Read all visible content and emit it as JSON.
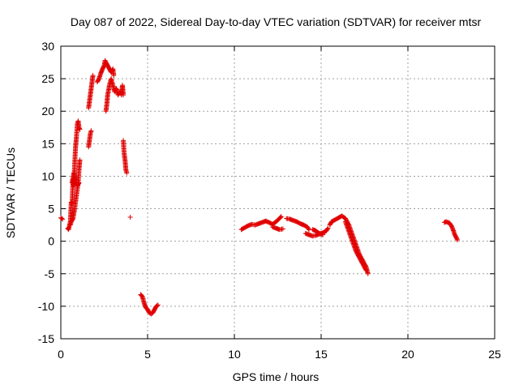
{
  "chart_data": {
    "type": "scatter",
    "title": "Day 087 of 2022, Sidereal Day-to-day VTEC variation (SDTVAR) for receiver mtsr",
    "xlabel": "GPS time / hours",
    "ylabel": "SDTVAR / TECUs",
    "xlim": [
      0,
      25
    ],
    "ylim": [
      -15,
      30
    ],
    "x_ticks": [
      0,
      5,
      10,
      15,
      20,
      25
    ],
    "y_ticks": [
      -15,
      -10,
      -5,
      0,
      5,
      10,
      15,
      20,
      25,
      30
    ],
    "x_tick_labels": [
      "0",
      "5",
      "10",
      "15",
      "20",
      "25"
    ],
    "y_tick_labels": [
      "-15",
      "-10",
      "-5",
      "0",
      "5",
      "10",
      "15",
      "20",
      "25",
      "30"
    ],
    "grid": true,
    "marker": "+",
    "color": "#e00000",
    "series": [
      {
        "name": "SDTVAR",
        "segments": [
          [
            [
              0.0,
              3.6
            ],
            [
              0.05,
              3.5
            ],
            [
              0.1,
              3.4
            ]
          ],
          [
            [
              0.4,
              2.0
            ],
            [
              0.45,
              1.8
            ],
            [
              0.5,
              2.5
            ],
            [
              0.55,
              3.0
            ],
            [
              0.6,
              6.0
            ],
            [
              0.65,
              5.8
            ],
            [
              0.7,
              9.5
            ],
            [
              0.75,
              8.5
            ],
            [
              0.8,
              12.0
            ],
            [
              0.85,
              14.5
            ],
            [
              0.9,
              16.0
            ],
            [
              0.95,
              18.0
            ],
            [
              1.0,
              18.5
            ],
            [
              1.05,
              17.5
            ],
            [
              1.1,
              17.2
            ]
          ],
          [
            [
              0.55,
              2.5
            ],
            [
              0.6,
              3.0
            ],
            [
              0.7,
              3.5
            ],
            [
              0.8,
              5.0
            ],
            [
              0.9,
              7.0
            ],
            [
              1.0,
              9.0
            ],
            [
              1.05,
              11.0
            ],
            [
              1.1,
              12.5
            ]
          ],
          [
            [
              0.65,
              9.0
            ],
            [
              0.75,
              10.5
            ],
            [
              0.85,
              9.5
            ],
            [
              0.95,
              8.5
            ],
            [
              1.05,
              9.0
            ]
          ],
          [
            [
              1.6,
              14.5
            ],
            [
              1.65,
              15.5
            ],
            [
              1.7,
              16.5
            ],
            [
              1.75,
              17.0
            ]
          ],
          [
            [
              1.6,
              20.5
            ],
            [
              1.65,
              21.5
            ],
            [
              1.7,
              22.5
            ],
            [
              1.75,
              23.5
            ],
            [
              1.8,
              24.5
            ],
            [
              1.85,
              25.5
            ]
          ],
          [
            [
              2.1,
              24.5
            ],
            [
              2.2,
              25.0
            ],
            [
              2.3,
              25.8
            ],
            [
              2.4,
              26.5
            ],
            [
              2.5,
              27.0
            ],
            [
              2.55,
              27.8
            ],
            [
              2.6,
              27.5
            ],
            [
              2.7,
              27.0
            ],
            [
              2.8,
              26.5
            ],
            [
              2.9,
              26.0
            ],
            [
              3.0,
              26.5
            ],
            [
              3.05,
              25.5
            ]
          ],
          [
            [
              2.6,
              20.0
            ],
            [
              2.65,
              21.0
            ],
            [
              2.7,
              22.5
            ],
            [
              2.8,
              24.0
            ],
            [
              2.9,
              25.0
            ],
            [
              3.0,
              24.0
            ],
            [
              3.1,
              23.0
            ],
            [
              3.2,
              23.5
            ],
            [
              3.3,
              22.5
            ],
            [
              3.4,
              23.0
            ],
            [
              3.5,
              22.5
            ],
            [
              3.55,
              24.0
            ],
            [
              3.6,
              22.5
            ]
          ],
          [
            [
              3.6,
              15.5
            ],
            [
              3.65,
              13.5
            ],
            [
              3.7,
              12.5
            ],
            [
              3.75,
              11.0
            ],
            [
              3.8,
              10.5
            ]
          ],
          [
            [
              4.0,
              3.7
            ]
          ],
          [
            [
              4.6,
              -8.2
            ],
            [
              4.7,
              -8.5
            ],
            [
              4.8,
              -9.5
            ],
            [
              4.9,
              -10.2
            ],
            [
              5.0,
              -10.5
            ],
            [
              5.1,
              -11.0
            ],
            [
              5.2,
              -11.2
            ],
            [
              5.3,
              -11.0
            ],
            [
              5.4,
              -10.5
            ],
            [
              5.5,
              -10.0
            ],
            [
              5.6,
              -9.8
            ]
          ],
          [
            [
              10.4,
              1.8
            ],
            [
              10.6,
              2.1
            ],
            [
              10.8,
              2.4
            ],
            [
              11.0,
              2.6
            ],
            [
              11.2,
              2.5
            ],
            [
              11.4,
              2.7
            ],
            [
              11.6,
              2.9
            ],
            [
              11.8,
              3.1
            ],
            [
              12.0,
              2.9
            ],
            [
              12.2,
              2.6
            ],
            [
              12.4,
              3.0
            ],
            [
              12.6,
              3.5
            ],
            [
              12.7,
              3.8
            ]
          ],
          [
            [
              12.2,
              2.2
            ],
            [
              12.4,
              2.0
            ],
            [
              12.6,
              1.8
            ],
            [
              12.8,
              1.9
            ]
          ],
          [
            [
              13.0,
              3.5
            ],
            [
              13.2,
              3.4
            ],
            [
              13.4,
              3.2
            ],
            [
              13.6,
              3.0
            ],
            [
              13.8,
              2.7
            ],
            [
              14.0,
              2.5
            ],
            [
              14.2,
              2.2
            ],
            [
              14.3,
              1.8
            ]
          ],
          [
            [
              14.1,
              1.2
            ],
            [
              14.3,
              1.0
            ],
            [
              14.5,
              0.8
            ],
            [
              14.7,
              0.9
            ],
            [
              14.9,
              1.1
            ],
            [
              15.1,
              1.3
            ],
            [
              15.3,
              1.6
            ],
            [
              15.4,
              2.0
            ]
          ],
          [
            [
              14.5,
              1.8
            ],
            [
              14.7,
              1.6
            ],
            [
              14.9,
              1.2
            ],
            [
              15.1,
              1.0
            ]
          ],
          [
            [
              15.5,
              2.5
            ],
            [
              15.6,
              3.0
            ],
            [
              15.8,
              3.3
            ],
            [
              16.0,
              3.6
            ],
            [
              16.2,
              3.9
            ],
            [
              16.4,
              3.5
            ],
            [
              16.6,
              2.5
            ],
            [
              16.8,
              1.0
            ],
            [
              17.0,
              -0.5
            ],
            [
              17.2,
              -2.0
            ],
            [
              17.4,
              -3.0
            ],
            [
              17.6,
              -4.0
            ],
            [
              17.7,
              -5.0
            ]
          ],
          [
            [
              16.4,
              3.0
            ],
            [
              16.6,
              1.5
            ],
            [
              16.8,
              0.0
            ],
            [
              17.0,
              -1.5
            ],
            [
              17.2,
              -2.5
            ],
            [
              17.4,
              -3.5
            ],
            [
              17.6,
              -4.5
            ]
          ],
          [
            [
              22.1,
              2.9
            ],
            [
              22.2,
              3.0
            ],
            [
              22.4,
              2.8
            ],
            [
              22.5,
              2.4
            ],
            [
              22.6,
              1.8
            ],
            [
              22.7,
              1.0
            ],
            [
              22.8,
              0.5
            ],
            [
              22.85,
              0.2
            ]
          ]
        ]
      }
    ]
  }
}
